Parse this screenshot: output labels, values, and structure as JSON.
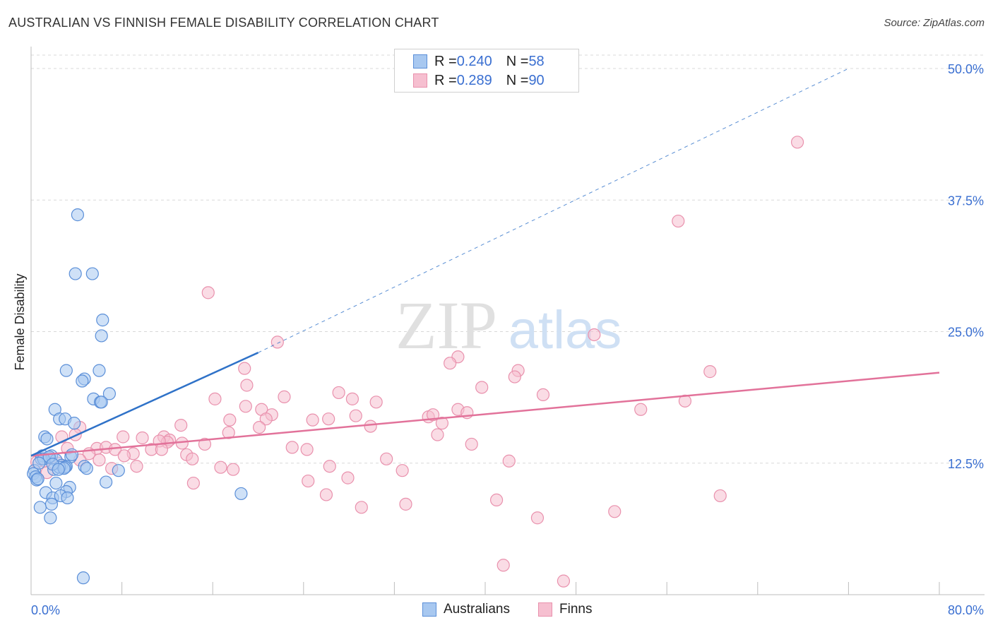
{
  "title": "AUSTRALIAN VS FINNISH FEMALE DISABILITY CORRELATION CHART",
  "source": "Source: ZipAtlas.com",
  "watermark": {
    "zip": "ZIP",
    "atlas": "atlas"
  },
  "legend": {
    "rows": [
      {
        "r_label": "R = ",
        "r_value": "0.240",
        "n_label": "N = ",
        "n_value": "58"
      },
      {
        "r_label": "R = ",
        "r_value": "0.289",
        "n_label": "N = ",
        "n_value": "90"
      }
    ],
    "bottom": [
      "Australians",
      "Finns"
    ]
  },
  "colors": {
    "blue_fill": "#a8c8f0",
    "blue_stroke": "#5b8fd8",
    "blue_line": "#2f72c8",
    "pink_fill": "#f6bfd0",
    "pink_stroke": "#e991ad",
    "pink_line": "#e2729a",
    "tick_label": "#3a6fd1",
    "grid": "#d8d8d8"
  },
  "chart_data": {
    "type": "scatter",
    "title": "AUSTRALIAN VS FINNISH FEMALE DISABILITY CORRELATION CHART",
    "xlabel": "",
    "ylabel": "Female Disability",
    "xlim": [
      0,
      80
    ],
    "ylim": [
      0,
      50
    ],
    "x_tick_labels": [
      "0.0%",
      "80.0%"
    ],
    "y_ticks": [
      12.5,
      25.0,
      37.5,
      50.0
    ],
    "y_tick_labels": [
      "12.5%",
      "25.0%",
      "37.5%",
      "50.0%"
    ],
    "grid": true,
    "legend_position": "top-center",
    "series": [
      {
        "name": "Australians",
        "R": 0.24,
        "N": 58,
        "trend": {
          "x0": 0,
          "y0": 13.2,
          "x1": 20,
          "y1": 23.0,
          "dashed_to_x": 72,
          "dashed_to_y": 50
        },
        "points": [
          [
            4.1,
            36.1
          ],
          [
            3.9,
            30.5
          ],
          [
            5.4,
            30.5
          ],
          [
            6.3,
            26.1
          ],
          [
            6.2,
            24.6
          ],
          [
            3.1,
            21.3
          ],
          [
            6.0,
            21.3
          ],
          [
            4.7,
            20.5
          ],
          [
            4.5,
            20.3
          ],
          [
            6.9,
            19.1
          ],
          [
            5.5,
            18.6
          ],
          [
            6.1,
            18.3
          ],
          [
            6.2,
            18.3
          ],
          [
            2.1,
            17.6
          ],
          [
            2.5,
            16.7
          ],
          [
            3.0,
            16.7
          ],
          [
            3.8,
            16.3
          ],
          [
            1.2,
            15.0
          ],
          [
            1.4,
            14.8
          ],
          [
            1.0,
            13.2
          ],
          [
            1.5,
            13.0
          ],
          [
            1.8,
            13.2
          ],
          [
            2.2,
            12.8
          ],
          [
            3.5,
            13.1
          ],
          [
            3.6,
            13.3
          ],
          [
            2.7,
            12.3
          ],
          [
            3.1,
            12.2
          ],
          [
            3.0,
            12.1
          ],
          [
            2.0,
            11.9
          ],
          [
            2.5,
            12.1
          ],
          [
            2.9,
            12.0
          ],
          [
            0.3,
            11.8
          ],
          [
            0.2,
            11.5
          ],
          [
            0.4,
            11.2
          ],
          [
            0.5,
            10.9
          ],
          [
            0.6,
            11.0
          ],
          [
            4.7,
            12.2
          ],
          [
            4.9,
            12.0
          ],
          [
            7.7,
            11.8
          ],
          [
            2.2,
            10.6
          ],
          [
            3.4,
            10.2
          ],
          [
            3.1,
            9.8
          ],
          [
            1.3,
            9.7
          ],
          [
            1.9,
            9.2
          ],
          [
            2.6,
            9.4
          ],
          [
            3.2,
            9.2
          ],
          [
            0.8,
            8.3
          ],
          [
            1.8,
            8.6
          ],
          [
            1.7,
            7.3
          ],
          [
            6.6,
            10.7
          ],
          [
            18.5,
            9.6
          ],
          [
            4.6,
            1.6
          ],
          [
            0.9,
            12.9
          ],
          [
            1.1,
            12.9
          ],
          [
            1.6,
            13.1
          ],
          [
            0.7,
            12.5
          ],
          [
            1.9,
            12.4
          ],
          [
            2.4,
            11.9
          ]
        ]
      },
      {
        "name": "Finns",
        "R": 0.289,
        "N": 90,
        "trend": {
          "x0": 0,
          "y0": 13.2,
          "x1": 80,
          "y1": 21.1
        },
        "points": [
          [
            67.5,
            43.0
          ],
          [
            57.0,
            35.5
          ],
          [
            15.6,
            28.7
          ],
          [
            49.6,
            24.7
          ],
          [
            21.7,
            24.0
          ],
          [
            37.6,
            22.6
          ],
          [
            36.9,
            22.0
          ],
          [
            18.8,
            21.5
          ],
          [
            42.9,
            21.3
          ],
          [
            42.6,
            20.7
          ],
          [
            59.8,
            21.2
          ],
          [
            19.0,
            19.9
          ],
          [
            39.7,
            19.7
          ],
          [
            27.1,
            19.2
          ],
          [
            45.1,
            19.0
          ],
          [
            22.3,
            18.8
          ],
          [
            28.3,
            18.6
          ],
          [
            16.2,
            18.6
          ],
          [
            30.4,
            18.3
          ],
          [
            57.6,
            18.4
          ],
          [
            18.9,
            17.9
          ],
          [
            20.3,
            17.6
          ],
          [
            37.6,
            17.6
          ],
          [
            38.4,
            17.3
          ],
          [
            21.2,
            17.1
          ],
          [
            28.6,
            17.0
          ],
          [
            35.0,
            16.9
          ],
          [
            35.4,
            17.1
          ],
          [
            53.7,
            17.6
          ],
          [
            20.7,
            16.7
          ],
          [
            17.5,
            16.6
          ],
          [
            24.8,
            16.6
          ],
          [
            26.2,
            16.7
          ],
          [
            36.2,
            16.3
          ],
          [
            13.2,
            16.1
          ],
          [
            20.1,
            15.9
          ],
          [
            29.9,
            16.0
          ],
          [
            4.3,
            15.9
          ],
          [
            17.4,
            15.4
          ],
          [
            35.8,
            15.2
          ],
          [
            3.9,
            15.2
          ],
          [
            2.7,
            15.0
          ],
          [
            8.1,
            15.0
          ],
          [
            9.8,
            14.9
          ],
          [
            11.7,
            15.0
          ],
          [
            12.2,
            14.7
          ],
          [
            12.0,
            14.5
          ],
          [
            11.3,
            14.6
          ],
          [
            13.3,
            14.4
          ],
          [
            15.3,
            14.3
          ],
          [
            5.8,
            13.9
          ],
          [
            6.6,
            14.0
          ],
          [
            7.4,
            13.8
          ],
          [
            10.6,
            13.8
          ],
          [
            11.5,
            13.8
          ],
          [
            23.0,
            14.0
          ],
          [
            24.3,
            13.8
          ],
          [
            38.8,
            14.3
          ],
          [
            3.2,
            13.9
          ],
          [
            5.1,
            13.4
          ],
          [
            9.0,
            13.4
          ],
          [
            8.2,
            13.2
          ],
          [
            13.7,
            13.3
          ],
          [
            14.2,
            12.9
          ],
          [
            4.3,
            12.8
          ],
          [
            6.0,
            12.8
          ],
          [
            1.2,
            12.7
          ],
          [
            2.4,
            12.5
          ],
          [
            0.5,
            12.6
          ],
          [
            31.3,
            12.9
          ],
          [
            42.1,
            12.7
          ],
          [
            9.3,
            12.2
          ],
          [
            7.1,
            12.0
          ],
          [
            16.7,
            12.1
          ],
          [
            17.8,
            11.9
          ],
          [
            26.3,
            12.2
          ],
          [
            32.7,
            11.8
          ],
          [
            1.4,
            11.6
          ],
          [
            27.9,
            11.1
          ],
          [
            24.4,
            10.8
          ],
          [
            14.3,
            10.6
          ],
          [
            26.0,
            9.5
          ],
          [
            41.0,
            9.0
          ],
          [
            60.7,
            9.4
          ],
          [
            29.1,
            8.3
          ],
          [
            33.0,
            8.6
          ],
          [
            51.4,
            7.9
          ],
          [
            44.6,
            7.3
          ],
          [
            41.6,
            2.8
          ],
          [
            46.9,
            1.3
          ]
        ]
      }
    ]
  }
}
